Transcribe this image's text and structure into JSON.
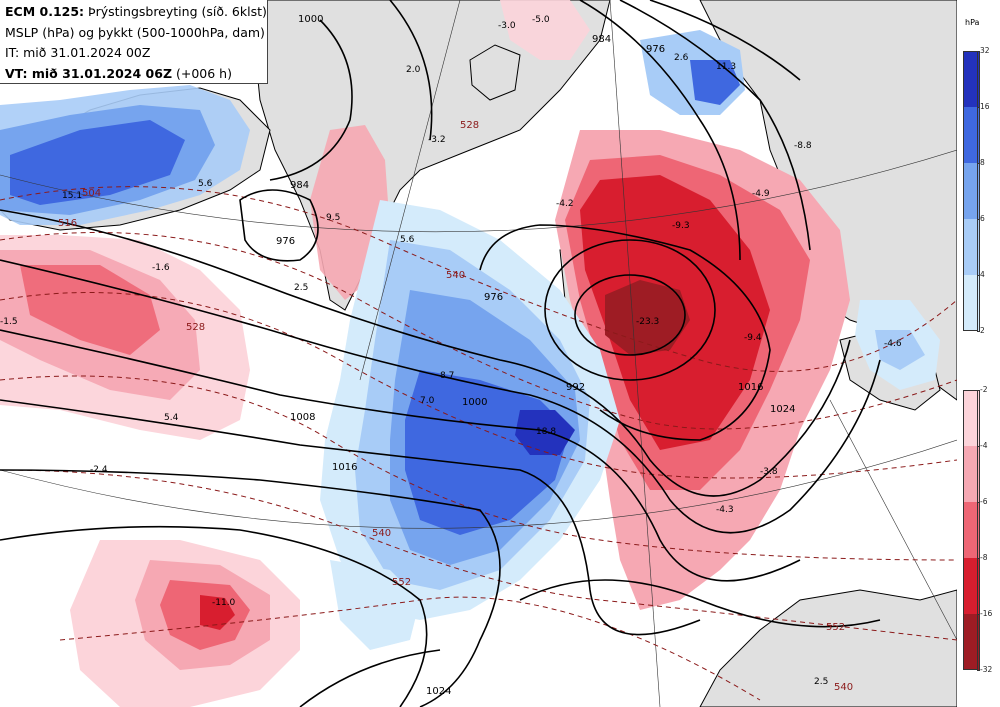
{
  "header": {
    "model": "ECM 0.125:",
    "product": "Þrýstingsbreyting (síð. 6klst)",
    "line2": "MSLP (hPa) og þykkt (500-1000hPa, dam)",
    "line3": "IT: mið 31.01.2024 00Z",
    "vt_label": "VT: mið 31.01.2024 06Z",
    "vt_suffix": "(+006 h)"
  },
  "legend": {
    "unit": "hPa",
    "positive": {
      "colors": [
        "#2332bd",
        "#3f68e0",
        "#76a4ee",
        "#a8ccf7",
        "#d4ebfb"
      ],
      "labels": [
        "32",
        "16",
        "8",
        "6",
        "4",
        "2"
      ]
    },
    "negative": {
      "colors": [
        "#fcd4da",
        "#f6a8b3",
        "#ee6675",
        "#d81e2f",
        "#9e1c24"
      ],
      "labels": [
        "-2",
        "-4",
        "-6",
        "-8",
        "-16",
        "-32"
      ]
    }
  },
  "map": {
    "isobar_labels": [
      "1000",
      "984",
      "976",
      "976",
      "976",
      "984",
      "992",
      "1000",
      "1008",
      "1016",
      "1024",
      "1016",
      "1024"
    ],
    "thickness_labels": [
      "504",
      "516",
      "528",
      "540",
      "540",
      "552",
      "552",
      "528",
      "540"
    ],
    "pressure_change_values": [
      "-3.0",
      "-5.0",
      "2.6",
      "11.3",
      "2.0",
      "-3.2",
      "15.1",
      "5.6",
      "9.5",
      "5.6",
      "2.5",
      "-4.2",
      "-4.9",
      "-9.3",
      "-23.3",
      "-9.4",
      "-8.8",
      "-4.6",
      "8.7",
      "7.0",
      "18.8",
      "-2.4",
      "-3.8",
      "-4.3",
      "-11.0",
      "5.4",
      "-1.6",
      "-1.5",
      "2.5"
    ]
  }
}
